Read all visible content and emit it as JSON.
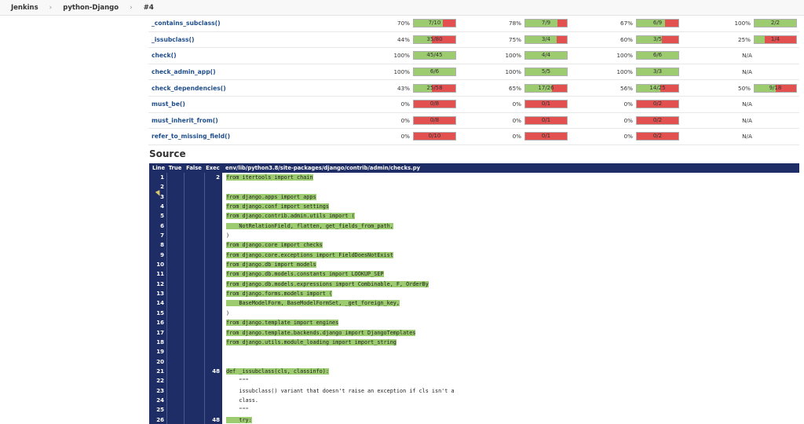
{
  "breadcrumb": [
    "Jenkins",
    "python-Django",
    "#4"
  ],
  "coverage_rows": [
    {
      "name": "_contains_subclass()",
      "cells": [
        {
          "pct": "70%",
          "label": "7/10",
          "fill": 0.7
        },
        {
          "pct": "78%",
          "label": "7/9",
          "fill": 0.78
        },
        {
          "pct": "67%",
          "label": "6/9",
          "fill": 0.67
        },
        {
          "pct": "100%",
          "label": "2/2",
          "fill": 1.0
        }
      ]
    },
    {
      "name": "_issubclass()",
      "cells": [
        {
          "pct": "44%",
          "label": "35/80",
          "fill": 0.44
        },
        {
          "pct": "75%",
          "label": "3/4",
          "fill": 0.75
        },
        {
          "pct": "60%",
          "label": "3/5",
          "fill": 0.6
        },
        {
          "pct": "25%",
          "label": "1/4",
          "fill": 0.25
        }
      ]
    },
    {
      "name": "check()",
      "cells": [
        {
          "pct": "100%",
          "label": "45/45",
          "fill": 1.0
        },
        {
          "pct": "100%",
          "label": "4/4",
          "fill": 1.0
        },
        {
          "pct": "100%",
          "label": "6/6",
          "fill": 1.0
        },
        {
          "na": "N/A"
        }
      ]
    },
    {
      "name": "check_admin_app()",
      "cells": [
        {
          "pct": "100%",
          "label": "6/6",
          "fill": 1.0
        },
        {
          "pct": "100%",
          "label": "5/5",
          "fill": 1.0
        },
        {
          "pct": "100%",
          "label": "3/3",
          "fill": 1.0
        },
        {
          "na": "N/A"
        }
      ]
    },
    {
      "name": "check_dependencies()",
      "cells": [
        {
          "pct": "43%",
          "label": "25/58",
          "fill": 0.43
        },
        {
          "pct": "65%",
          "label": "17/26",
          "fill": 0.65
        },
        {
          "pct": "56%",
          "label": "14/25",
          "fill": 0.56
        },
        {
          "pct": "50%",
          "label": "9/18",
          "fill": 0.5
        }
      ]
    },
    {
      "name": "must_be()",
      "cells": [
        {
          "pct": "0%",
          "label": "0/8",
          "fill": 0
        },
        {
          "pct": "0%",
          "label": "0/1",
          "fill": 0
        },
        {
          "pct": "0%",
          "label": "0/2",
          "fill": 0
        },
        {
          "na": "N/A"
        }
      ]
    },
    {
      "name": "must_inherit_from()",
      "cells": [
        {
          "pct": "0%",
          "label": "0/8",
          "fill": 0
        },
        {
          "pct": "0%",
          "label": "0/1",
          "fill": 0
        },
        {
          "pct": "0%",
          "label": "0/2",
          "fill": 0
        },
        {
          "na": "N/A"
        }
      ]
    },
    {
      "name": "refer_to_missing_field()",
      "cells": [
        {
          "pct": "0%",
          "label": "0/10",
          "fill": 0
        },
        {
          "pct": "0%",
          "label": "0/1",
          "fill": 0
        },
        {
          "pct": "0%",
          "label": "0/2",
          "fill": 0
        },
        {
          "na": "N/A"
        }
      ]
    }
  ],
  "source": {
    "title": "Source",
    "headers": {
      "line": "Line",
      "true": "True",
      "false": "False",
      "exec": "Exec",
      "file": "env/lib/python3.8/site-packages/django/contrib/admin/checks.py"
    },
    "lines": [
      {
        "n": "1",
        "exec": "2",
        "code": "from itertools import chain",
        "hl": true
      },
      {
        "n": "2",
        "exec": "",
        "code": "",
        "hl": false
      },
      {
        "n": "3",
        "exec": "",
        "code": "from django.apps import apps",
        "hl": true
      },
      {
        "n": "4",
        "exec": "",
        "code": "from django.conf import settings",
        "hl": true
      },
      {
        "n": "5",
        "exec": "",
        "code": "from django.contrib.admin.utils import (",
        "hl": true
      },
      {
        "n": "6",
        "exec": "",
        "code": "    NotRelationField, flatten, get_fields_from_path,",
        "hl": true
      },
      {
        "n": "7",
        "exec": "",
        "code": ")",
        "hl": false
      },
      {
        "n": "8",
        "exec": "",
        "code": "from django.core import checks",
        "hl": true
      },
      {
        "n": "9",
        "exec": "",
        "code": "from django.core.exceptions import FieldDoesNotExist",
        "hl": true
      },
      {
        "n": "10",
        "exec": "",
        "code": "from django.db import models",
        "hl": true
      },
      {
        "n": "11",
        "exec": "",
        "code": "from django.db.models.constants import LOOKUP_SEP",
        "hl": true
      },
      {
        "n": "12",
        "exec": "",
        "code": "from django.db.models.expressions import Combinable, F, OrderBy",
        "hl": true
      },
      {
        "n": "13",
        "exec": "",
        "code": "from django.forms.models import (",
        "hl": true
      },
      {
        "n": "14",
        "exec": "",
        "code": "    BaseModelForm, BaseModelFormSet, _get_foreign_key,",
        "hl": true
      },
      {
        "n": "15",
        "exec": "",
        "code": ")",
        "hl": false
      },
      {
        "n": "16",
        "exec": "",
        "code": "from django.template import engines",
        "hl": true
      },
      {
        "n": "17",
        "exec": "",
        "code": "from django.template.backends.django import DjangoTemplates",
        "hl": true
      },
      {
        "n": "18",
        "exec": "",
        "code": "from django.utils.module_loading import import_string",
        "hl": true
      },
      {
        "n": "19",
        "exec": "",
        "code": "",
        "hl": false
      },
      {
        "n": "20",
        "exec": "",
        "code": "",
        "hl": false
      },
      {
        "n": "21",
        "exec": "48",
        "code": "def _issubclass(cls, classinfo):",
        "hl": true
      },
      {
        "n": "22",
        "exec": "",
        "code": "    \"\"\"",
        "hl": false
      },
      {
        "n": "23",
        "exec": "",
        "code": "    issubclass() variant that doesn't raise an exception if cls isn't a",
        "hl": false
      },
      {
        "n": "24",
        "exec": "",
        "code": "    class.",
        "hl": false
      },
      {
        "n": "25",
        "exec": "",
        "code": "    \"\"\"",
        "hl": false
      },
      {
        "n": "26",
        "exec": "48",
        "code": "    try:",
        "hl": true
      }
    ]
  }
}
